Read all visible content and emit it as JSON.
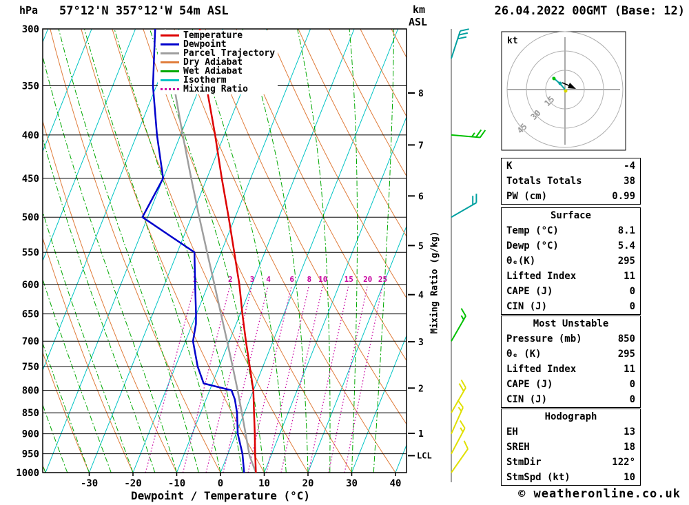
{
  "titles": {
    "station": "57°12'N 357°12'W 54m ASL",
    "datetime": "26.04.2022 00GMT (Base: 12)",
    "pressure_unit": "hPa",
    "km": "km",
    "asl": "ASL",
    "x_axis": "Dewpoint / Temperature (°C)",
    "mixing_ratio_axis": "Mixing Ratio (g/kg)",
    "lcl": "LCL",
    "copyright": "© weatheronline.co.uk"
  },
  "colors": {
    "temperature": "#dd0000",
    "dewpoint": "#0000cc",
    "parcel": "#9e9e9e",
    "dry_adiabat": "#e07d3c",
    "wet_adiabat": "#00a800",
    "isotherm": "#00c4c4",
    "mixing_ratio": "#c800a0",
    "grid": "#000000",
    "wind_staff": "#808080",
    "hodograph_ring": "#b0b0b0",
    "hodograph_ring_label": "#999999"
  },
  "legend": [
    {
      "label": "Temperature",
      "color_key": "temperature",
      "style": "solid"
    },
    {
      "label": "Dewpoint",
      "color_key": "dewpoint",
      "style": "solid"
    },
    {
      "label": "Parcel Trajectory",
      "color_key": "parcel",
      "style": "solid"
    },
    {
      "label": "Dry Adiabat",
      "color_key": "dry_adiabat",
      "style": "solid"
    },
    {
      "label": "Wet Adiabat",
      "color_key": "wet_adiabat",
      "style": "solid"
    },
    {
      "label": "Isotherm",
      "color_key": "isotherm",
      "style": "solid"
    },
    {
      "label": "Mixing Ratio",
      "color_key": "mixing_ratio",
      "style": "dotted"
    }
  ],
  "chart_data": {
    "type": "skewt-log-p",
    "pressure_axis_hpa": [
      300,
      350,
      400,
      450,
      500,
      550,
      600,
      650,
      700,
      750,
      800,
      850,
      900,
      950,
      1000
    ],
    "temp_axis_c": [
      -30,
      -20,
      -10,
      0,
      10,
      20,
      30,
      40
    ],
    "km_asl_ticks": [
      {
        "km": 8,
        "hpa": 357
      },
      {
        "km": 7,
        "hpa": 411
      },
      {
        "km": 6,
        "hpa": 472
      },
      {
        "km": 5,
        "hpa": 540
      },
      {
        "km": 4,
        "hpa": 617
      },
      {
        "km": 3,
        "hpa": 701
      },
      {
        "km": 2,
        "hpa": 795
      },
      {
        "km": 1,
        "hpa": 899
      }
    ],
    "lcl_hpa": 955,
    "isotherms_c": {
      "min": -100,
      "max": 40,
      "step": 10
    },
    "dry_adiabats_c": {
      "min": -40,
      "max": 170,
      "step": 10
    },
    "wet_adiabats_start_c": {
      "min": -40,
      "max": 35,
      "step": 5
    },
    "mixing_ratio_g_kg": [
      1,
      2,
      3,
      4,
      6,
      8,
      10,
      15,
      20,
      25
    ],
    "temperature_profile_p_t": [
      [
        1000,
        8.1
      ],
      [
        950,
        6.2
      ],
      [
        900,
        4.3
      ],
      [
        850,
        2.2
      ],
      [
        800,
        0.0
      ],
      [
        750,
        -3.0
      ],
      [
        700,
        -6.2
      ],
      [
        650,
        -9.5
      ],
      [
        600,
        -12.9
      ],
      [
        550,
        -17.0
      ],
      [
        500,
        -21.5
      ],
      [
        450,
        -26.6
      ],
      [
        400,
        -32.1
      ],
      [
        350,
        -38.6
      ],
      [
        300,
        -45.3
      ]
    ],
    "dewpoint_profile_p_t": [
      [
        1000,
        5.4
      ],
      [
        950,
        3.3
      ],
      [
        900,
        0.4
      ],
      [
        850,
        -1.7
      ],
      [
        820,
        -3.4
      ],
      [
        800,
        -5.0
      ],
      [
        785,
        -12.0
      ],
      [
        750,
        -14.9
      ],
      [
        700,
        -18.3
      ],
      [
        668,
        -19.2
      ],
      [
        650,
        -20.1
      ],
      [
        600,
        -23.0
      ],
      [
        550,
        -26.1
      ],
      [
        500,
        -41.2
      ],
      [
        450,
        -40.0
      ],
      [
        400,
        -45.4
      ],
      [
        350,
        -50.8
      ],
      [
        300,
        -55.5
      ]
    ],
    "parcel_profile_p_t": [
      [
        1000,
        8.1
      ],
      [
        955,
        5.1
      ],
      [
        900,
        2.2
      ],
      [
        850,
        -0.6
      ],
      [
        800,
        -3.6
      ],
      [
        750,
        -6.9
      ],
      [
        700,
        -10.5
      ],
      [
        650,
        -14.4
      ],
      [
        600,
        -18.6
      ],
      [
        550,
        -23.2
      ],
      [
        500,
        -28.2
      ],
      [
        450,
        -33.6
      ],
      [
        400,
        -39.5
      ],
      [
        350,
        -46.0
      ],
      [
        300,
        -53.2
      ]
    ],
    "wind_barbs": [
      {
        "hpa": 325,
        "color": "#00a0a0",
        "angle_deg": 18,
        "tick_side": 1,
        "full": 3,
        "half": 0
      },
      {
        "hpa": 400,
        "color": "#00c000",
        "angle_deg": 95,
        "tick_side": -1,
        "full": 2,
        "half": 1
      },
      {
        "hpa": 500,
        "color": "#00a0a0",
        "angle_deg": 60,
        "tick_side": -1,
        "full": 2,
        "half": 0
      },
      {
        "hpa": 700,
        "color": "#00c000",
        "angle_deg": 30,
        "tick_side": -1,
        "full": 1,
        "half": 1
      },
      {
        "hpa": 850,
        "color": "#e0e000",
        "angle_deg": 30,
        "tick_side": -1,
        "full": 2,
        "half": 0
      },
      {
        "hpa": 900,
        "color": "#e0e000",
        "angle_deg": 24,
        "tick_side": -1,
        "full": 1,
        "half": 1
      },
      {
        "hpa": 950,
        "color": "#e0e000",
        "angle_deg": 28,
        "tick_side": -1,
        "full": 1,
        "half": 1
      },
      {
        "hpa": 1000,
        "color": "#e0e000",
        "angle_deg": 35,
        "tick_side": -1,
        "full": 1,
        "half": 0
      }
    ]
  },
  "hodograph": {
    "unit": "kt",
    "ring_kts": [
      15,
      30,
      45
    ]
  },
  "stats": {
    "indices": {
      "rows": [
        [
          "K",
          "-4"
        ],
        [
          "Totals Totals",
          "38"
        ],
        [
          "PW (cm)",
          "0.99"
        ]
      ]
    },
    "surface": {
      "title": "Surface",
      "rows": [
        [
          "Temp (°C)",
          "8.1"
        ],
        [
          "Dewp (°C)",
          "5.4"
        ],
        [
          "θₑ(K)",
          "295"
        ],
        [
          "Lifted Index",
          "11"
        ],
        [
          "CAPE (J)",
          "0"
        ],
        [
          "CIN (J)",
          "0"
        ]
      ]
    },
    "most_unstable": {
      "title": "Most Unstable",
      "rows": [
        [
          "Pressure (mb)",
          "850"
        ],
        [
          "θₑ (K)",
          "295"
        ],
        [
          "Lifted Index",
          "11"
        ],
        [
          "CAPE (J)",
          "0"
        ],
        [
          "CIN (J)",
          "0"
        ]
      ]
    },
    "hodograph_stats": {
      "title": "Hodograph",
      "rows": [
        [
          "EH",
          "13"
        ],
        [
          "SREH",
          "18"
        ],
        [
          "StmDir",
          "122°"
        ],
        [
          "StmSpd (kt)",
          "10"
        ]
      ]
    }
  }
}
